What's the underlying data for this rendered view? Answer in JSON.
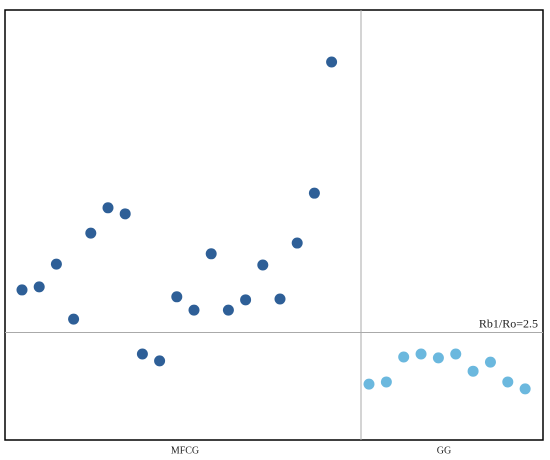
{
  "chart_data": {
    "type": "scatter",
    "categories": [
      "MFCG",
      "GG"
    ],
    "series": [
      {
        "name": "MFCG",
        "color": "#2e5f97",
        "values": [
          3.49,
          3.56,
          4.09,
          2.81,
          4.81,
          5.4,
          5.26,
          2.0,
          1.84,
          3.33,
          3.02,
          4.33,
          3.02,
          3.26,
          4.07,
          3.28,
          4.58,
          5.74,
          8.79
        ]
      },
      {
        "name": "GG",
        "color": "#6bb8de",
        "values": [
          1.3,
          1.35,
          1.93,
          2.0,
          1.91,
          2.0,
          1.6,
          1.81,
          1.35,
          1.19
        ]
      }
    ],
    "ylim": [
      0,
      10
    ],
    "reference_line": {
      "value": 2.5,
      "label": "Rb1/Ro=2.5"
    }
  }
}
